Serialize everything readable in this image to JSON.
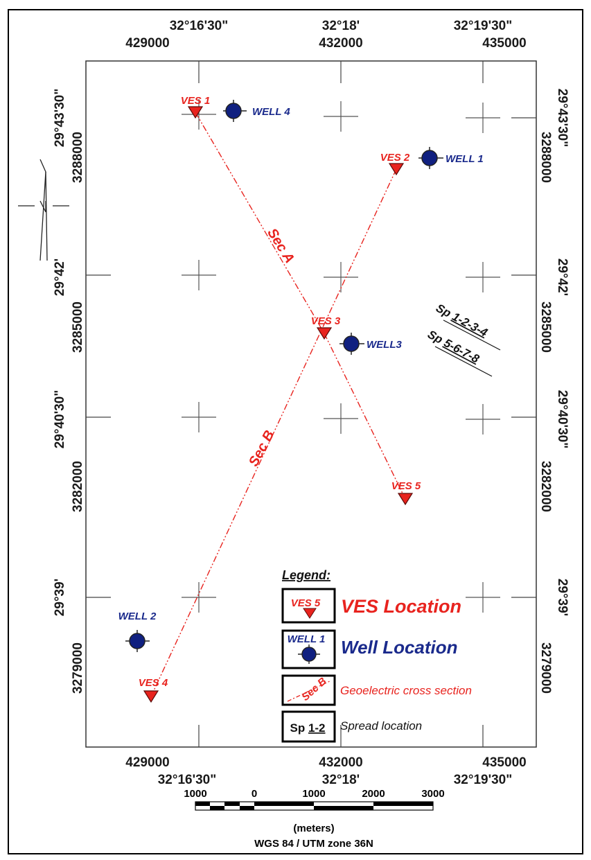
{
  "map": {
    "top_dms": [
      "32°16'30\"",
      "32°18'",
      "32°19'30\""
    ],
    "top_utm": [
      "429000",
      "432000",
      "435000"
    ],
    "bottom_utm": [
      "429000",
      "432000",
      "435000"
    ],
    "bottom_dms": [
      "32°16'30\"",
      "32°18'",
      "32°19'30\""
    ],
    "left_dms": [
      "29°43'30\"",
      "29°42'",
      "29°40'30\"",
      "29°39'"
    ],
    "left_utm": [
      "3288000",
      "3285000",
      "3282000",
      "3279000"
    ],
    "right_dms": [
      "29°43'30\"",
      "29°42'",
      "29°40'30\"",
      "29°39'"
    ],
    "right_utm": [
      "3288000",
      "3285000",
      "3282000",
      "3279000"
    ]
  },
  "ves_points": [
    {
      "label": "VES 1"
    },
    {
      "label": "VES 2"
    },
    {
      "label": "VES 3"
    },
    {
      "label": "VES 4"
    },
    {
      "label": "VES 5"
    }
  ],
  "wells": [
    {
      "label": "WELL 4"
    },
    {
      "label": "WELL 1"
    },
    {
      "label": "WELL3"
    },
    {
      "label": "WELL 2"
    }
  ],
  "sections": [
    {
      "label": "Sec A"
    },
    {
      "label": "Sec B"
    }
  ],
  "spreads": {
    "line1_prefix": "Sp ",
    "line1_nums": "1-2-3-4",
    "line2_prefix": "Sp ",
    "line2_nums": "5-6-7-8"
  },
  "legend": {
    "title": "Legend:",
    "ves_sample": "VES 5",
    "ves_text": "VES Location",
    "well_sample": "WELL 1",
    "well_text": "Well Location",
    "sec_sample": "Sec B",
    "sec_text": "Geoelectric cross section",
    "sp_prefix": "Sp ",
    "sp_nums": "1-2",
    "sp_text": "Spread location"
  },
  "scale_bar": {
    "labels": [
      "1000",
      "0",
      "1000",
      "2000",
      "3000"
    ],
    "units": "(meters)",
    "projection": "WGS 84 / UTM zone 36N"
  },
  "colors": {
    "ves": "#e8231e",
    "well": "#102080",
    "section_line": "#e8231e"
  }
}
